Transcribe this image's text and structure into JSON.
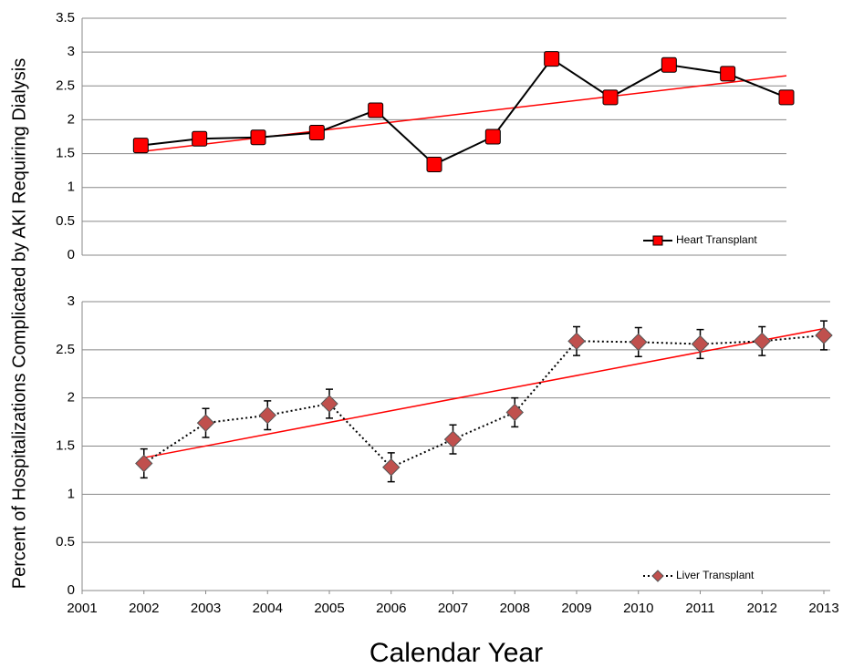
{
  "y_label": "Percent of Hospitalizations Complicated by AKI Requiring Dialysis",
  "x_label": "Calendar Year",
  "chart_data": [
    {
      "type": "line",
      "categories": [
        null,
        null,
        null,
        null,
        null,
        null,
        null,
        null,
        null,
        null,
        null,
        null
      ],
      "ylim": [
        0,
        3.5
      ],
      "yticks": [
        0,
        0.5,
        1,
        1.5,
        2,
        2.5,
        3,
        3.5
      ],
      "grid": true,
      "legend": "bottom-right",
      "series": [
        {
          "name": "Heart Transplant",
          "color": "#ff0000",
          "line_color": "#000000",
          "line_style": "solid",
          "marker": "square",
          "values": [
            1.62,
            1.72,
            1.74,
            1.81,
            2.14,
            1.34,
            1.75,
            2.9,
            2.33,
            2.81,
            2.68,
            2.33
          ],
          "errors": [
            0.07,
            0.07,
            0.07,
            0.07,
            0.07,
            0.07,
            0.07,
            0.07,
            0.07,
            0.07,
            0.07,
            0.07
          ]
        }
      ],
      "trend": {
        "color": "#ff0000",
        "values": [
          1.53,
          2.65
        ]
      }
    },
    {
      "type": "line",
      "x": [
        2002,
        2003,
        2004,
        2005,
        2006,
        2007,
        2008,
        2009,
        2010,
        2011,
        2012,
        2013
      ],
      "xlim": [
        2001,
        2013
      ],
      "xticks": [
        2001,
        2002,
        2003,
        2004,
        2005,
        2006,
        2007,
        2008,
        2009,
        2010,
        2011,
        2012,
        2013
      ],
      "ylim": [
        0,
        3
      ],
      "yticks": [
        0,
        0.5,
        1,
        1.5,
        2,
        2.5,
        3
      ],
      "grid": true,
      "legend": "bottom-right",
      "series": [
        {
          "name": "Liver Transplant",
          "color": "#c0504d",
          "line_color": "#000000",
          "line_style": "dotted",
          "marker": "diamond",
          "values": [
            1.32,
            1.74,
            1.82,
            1.94,
            1.28,
            1.57,
            1.85,
            2.59,
            2.58,
            2.56,
            2.59,
            2.65
          ],
          "errors": [
            0.15,
            0.15,
            0.15,
            0.15,
            0.15,
            0.15,
            0.15,
            0.15,
            0.15,
            0.15,
            0.15,
            0.15
          ]
        }
      ],
      "trend": {
        "color": "#ff0000",
        "values": [
          1.38,
          2.72
        ]
      }
    }
  ]
}
